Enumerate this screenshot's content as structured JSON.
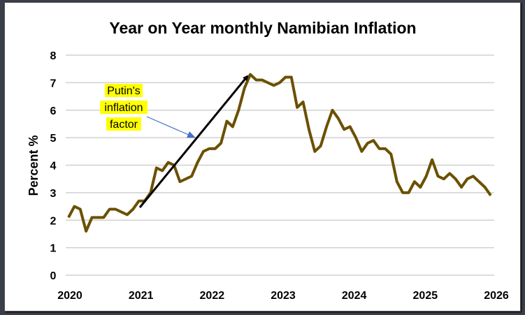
{
  "chart_data": {
    "type": "line",
    "title": "Year on Year monthly Namibian Inflation",
    "xlabel": "",
    "ylabel": "Percent  %",
    "ylim": [
      0,
      8
    ],
    "yticks": [
      "0",
      "1",
      "2",
      "3",
      "4",
      "5",
      "6",
      "7",
      "8"
    ],
    "xticks": [
      "2020",
      "2021",
      "2022",
      "2023",
      "2024",
      "2025",
      "2026"
    ],
    "grid": true,
    "x_start": "2020-01",
    "x_step": "month",
    "series": [
      {
        "name": "Inflation",
        "color": "#6b5000",
        "values": [
          2.1,
          2.5,
          2.4,
          1.6,
          2.1,
          2.1,
          2.1,
          2.4,
          2.4,
          2.3,
          2.2,
          2.4,
          2.7,
          2.7,
          3.0,
          3.9,
          3.8,
          4.1,
          4.0,
          3.4,
          3.5,
          3.6,
          4.1,
          4.5,
          4.6,
          4.6,
          4.8,
          5.6,
          5.4,
          6.0,
          6.8,
          7.3,
          7.1,
          7.1,
          7.0,
          6.9,
          7.0,
          7.2,
          7.2,
          6.1,
          6.3,
          5.3,
          4.5,
          4.7,
          5.4,
          6.0,
          5.7,
          5.3,
          5.4,
          5.0,
          4.5,
          4.8,
          4.9,
          4.6,
          4.6,
          4.4,
          3.4,
          3.0,
          3.0,
          3.4,
          3.2,
          3.6,
          4.2,
          3.6,
          3.5,
          3.7,
          3.5,
          3.2,
          3.5,
          3.6,
          3.4,
          3.2,
          2.9
        ]
      }
    ],
    "annotations": [
      {
        "text_lines": [
          "Putin's",
          "inflation",
          "factor"
        ],
        "highlight": "#ffff00",
        "arrow_color": "#4472c4"
      },
      {
        "trend_arrow": {
          "from": [
            "2021-01",
            2.5
          ],
          "to": [
            "2022-08",
            7.3
          ]
        },
        "color": "#000000"
      }
    ]
  }
}
